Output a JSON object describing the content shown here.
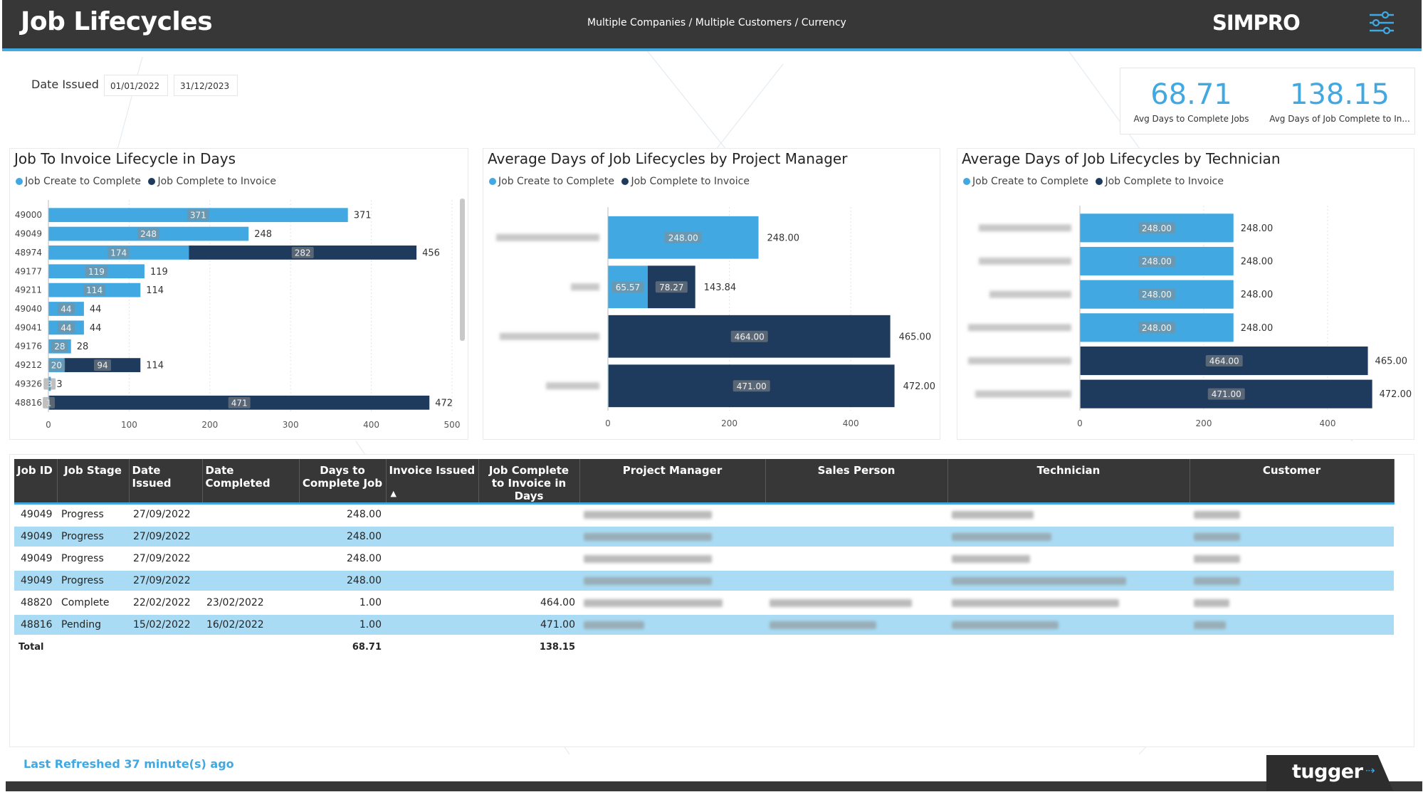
{
  "header": {
    "title": "Job Lifecycles",
    "breadcrumb": "Multiple Companies / Multiple Customers /  Currency",
    "brand": "SIMPRO",
    "filter_icon": "sliders-icon"
  },
  "date_filter": {
    "label": "Date  Issued",
    "start": "01/01/2022",
    "end": "31/12/2023"
  },
  "kpis": [
    {
      "value": "68.71",
      "label": "Avg Days to Complete Jobs"
    },
    {
      "value": "138.15",
      "label": "Avg Days of Job Complete to In..."
    }
  ],
  "colors": {
    "create_to_complete": "#41a8e2",
    "complete_to_invoice": "#1e3a5c",
    "header": "#373737",
    "accent": "#41a8e2"
  },
  "legend": {
    "series1": "Job Create to Complete",
    "series2": "Job Complete to Invoice"
  },
  "chart_data": [
    {
      "type": "bar",
      "orientation": "horizontal",
      "stacked": true,
      "title": "Job To Invoice Lifecycle in Days",
      "categories": [
        "49000",
        "49049",
        "48974",
        "49177",
        "49211",
        "49040",
        "49041",
        "49176",
        "49212",
        "49326",
        "48816"
      ],
      "series": [
        {
          "name": "Job Create to Complete",
          "values": [
            371,
            248,
            174,
            119,
            114,
            44,
            44,
            28,
            20,
            3,
            1
          ]
        },
        {
          "name": "Job Complete to Invoice",
          "values": [
            0,
            0,
            282,
            0,
            0,
            0,
            0,
            0,
            94,
            0,
            471
          ]
        }
      ],
      "totals": [
        371,
        248,
        456,
        119,
        114,
        44,
        44,
        28,
        114,
        3,
        472
      ],
      "xlim": [
        0,
        500
      ],
      "xticks": [
        0,
        100,
        200,
        300,
        400,
        500
      ],
      "grid": true
    },
    {
      "type": "bar",
      "orientation": "horizontal",
      "stacked": true,
      "title": "Average Days of Job Lifecycles by Project Manager",
      "categories": [
        "",
        "",
        "",
        ""
      ],
      "series": [
        {
          "name": "Job Create to Complete",
          "values": [
            248.0,
            65.57,
            1.0,
            1.0
          ]
        },
        {
          "name": "Job Complete to Invoice",
          "values": [
            0,
            78.27,
            464.0,
            471.0
          ]
        }
      ],
      "totals": [
        "248.00",
        "143.84",
        "465.00",
        "472.00"
      ],
      "inner_labels": [
        [
          "248.00",
          ""
        ],
        [
          "65.57",
          "78.27"
        ],
        [
          "",
          "464.00"
        ],
        [
          "",
          "471.00"
        ]
      ],
      "xlim": [
        0,
        510
      ],
      "xticks": [
        0,
        200,
        400
      ],
      "grid": true
    },
    {
      "type": "bar",
      "orientation": "horizontal",
      "stacked": true,
      "title": "Average Days of Job Lifecycles by Technician",
      "categories": [
        "",
        "",
        "",
        "",
        "",
        ""
      ],
      "series": [
        {
          "name": "Job Create to Complete",
          "values": [
            248.0,
            248.0,
            248.0,
            248.0,
            1.0,
            1.0
          ]
        },
        {
          "name": "Job Complete to Invoice",
          "values": [
            0,
            0,
            0,
            0,
            464.0,
            471.0
          ]
        }
      ],
      "totals": [
        "248.00",
        "248.00",
        "248.00",
        "248.00",
        "465.00",
        "472.00"
      ],
      "inner_labels": [
        [
          "248.00",
          ""
        ],
        [
          "248.00",
          ""
        ],
        [
          "248.00",
          ""
        ],
        [
          "248.00",
          ""
        ],
        [
          "",
          "464.00"
        ],
        [
          "",
          "471.00"
        ]
      ],
      "xlim": [
        0,
        500
      ],
      "xticks": [
        0,
        200,
        400
      ],
      "grid": true
    }
  ],
  "table": {
    "columns": [
      "Job ID",
      "Job Stage",
      "Date Issued",
      "Date Completed",
      "Days to Complete Job",
      "Invoice Issued",
      "Job Complete to Invoice in Days",
      "Project Manager",
      "Sales Person",
      "Technician",
      "Customer"
    ],
    "sort_icon": "sort-ascending-icon",
    "rows": [
      {
        "job_id": "49049",
        "stage": "Progress",
        "issued": "27/09/2022",
        "completed": "",
        "days": "248.00",
        "invoice": "",
        "to_invoice": ""
      },
      {
        "job_id": "49049",
        "stage": "Progress",
        "issued": "27/09/2022",
        "completed": "",
        "days": "248.00",
        "invoice": "",
        "to_invoice": ""
      },
      {
        "job_id": "49049",
        "stage": "Progress",
        "issued": "27/09/2022",
        "completed": "",
        "days": "248.00",
        "invoice": "",
        "to_invoice": ""
      },
      {
        "job_id": "49049",
        "stage": "Progress",
        "issued": "27/09/2022",
        "completed": "",
        "days": "248.00",
        "invoice": "",
        "to_invoice": ""
      },
      {
        "job_id": "48820",
        "stage": "Complete",
        "issued": "22/02/2022",
        "completed": "23/02/2022",
        "days": "1.00",
        "invoice": "",
        "to_invoice": "464.00"
      },
      {
        "job_id": "48816",
        "stage": "Pending",
        "issued": "15/02/2022",
        "completed": "16/02/2022",
        "days": "1.00",
        "invoice": "",
        "to_invoice": "471.00"
      }
    ],
    "total": {
      "label": "Total",
      "days": "68.71",
      "to_invoice": "138.15"
    }
  },
  "footer": {
    "refreshed": "Last Refreshed 37 minute(s) ago",
    "logo": "tugger"
  }
}
